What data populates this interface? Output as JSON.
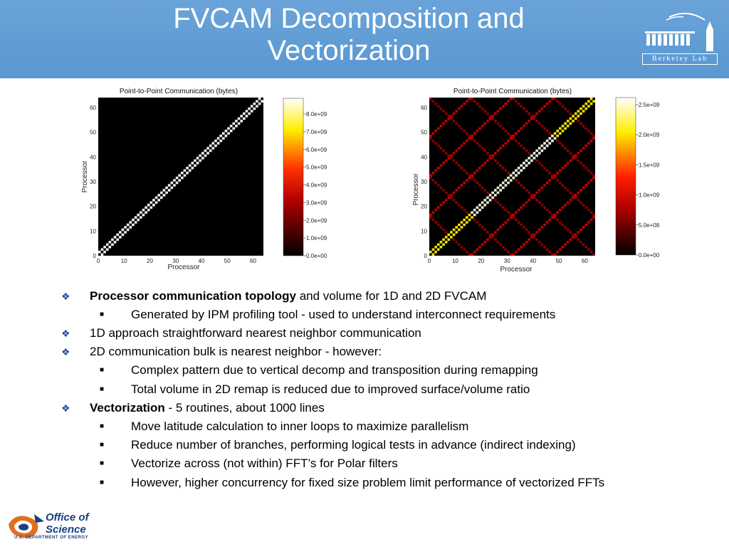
{
  "slide": {
    "title_line1": "FVCAM Decomposition and",
    "title_line2": "Vectorization",
    "logo_text": "Berkeley Lab"
  },
  "left_plot": {
    "title": "Point-to-Point Communication (bytes)",
    "xlabel": "Processor",
    "ylabel": "Processor",
    "xticks": [
      "0",
      "10",
      "20",
      "30",
      "40",
      "50",
      "60"
    ],
    "yticks": [
      "0",
      "10",
      "20",
      "30",
      "40",
      "50",
      "60"
    ],
    "colorbar_ticks": [
      "0.0e+00",
      "1.0e+09",
      "2.0e+09",
      "3.0e+09",
      "4.0e+09",
      "5.0e+09",
      "6.0e+09",
      "7.0e+09",
      "8.0e+09"
    ]
  },
  "right_plot": {
    "title": "Point-to-Point Communication (bytes)",
    "xlabel": "Processor",
    "ylabel": "Processor",
    "xticks": [
      "0",
      "10",
      "20",
      "30",
      "40",
      "50",
      "60"
    ],
    "yticks": [
      "0",
      "10",
      "20",
      "30",
      "40",
      "50",
      "60"
    ],
    "colorbar_ticks": [
      "0.0e+00",
      "5.0e+08",
      "1.0e+09",
      "1.5e+09",
      "2.0e+09",
      "2.5e+09"
    ]
  },
  "bullets": [
    {
      "level": 1,
      "bold": "Processor communication topology",
      "text": " and volume for  1D and  2D FVCAM"
    },
    {
      "level": 2,
      "bold": "",
      "text": "Generated by IPM profiling tool - used to understand interconnect requirements"
    },
    {
      "level": 1,
      "bold": "",
      "text": "1D approach straightforward nearest neighbor communication"
    },
    {
      "level": 1,
      "bold": "",
      "text": "2D communication bulk is nearest neighbor - however:"
    },
    {
      "level": 2,
      "bold": "",
      "text": "Complex pattern due to vertical decomp and transposition during remapping"
    },
    {
      "level": 2,
      "bold": "",
      "text": "Total volume in 2D remap is reduced due to improved surface/volume ratio"
    },
    {
      "level": 1,
      "bold": "Vectorization",
      "text": " - 5 routines, about 1000 lines"
    },
    {
      "level": 2,
      "bold": "",
      "text": "Move latitude calculation to inner loops to maximize parallelism"
    },
    {
      "level": 2,
      "bold": "",
      "text": "Reduce number of branches, performing logical tests in advance (indirect indexing)"
    },
    {
      "level": 2,
      "bold": "",
      "text": "Vectorize across (not within) FFT’s for Polar filters"
    },
    {
      "level": 2,
      "bold": "",
      "text": "However, higher concurrency for fixed size problem limit performance of vectorized FFTs"
    }
  ],
  "footer": {
    "line1": "Office of",
    "line2": "Science",
    "line3": "U.S. DEPARTMENT OF ENERGY"
  },
  "colors": {
    "header": "#5b9bd5",
    "bullet_mark": "#1f4fa0"
  }
}
